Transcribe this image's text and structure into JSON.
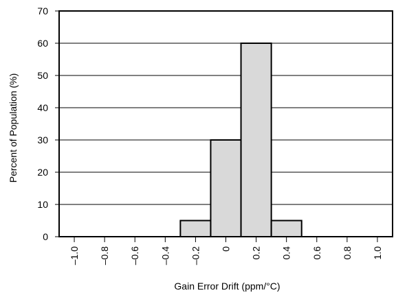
{
  "chart_data": {
    "type": "bar",
    "title": "",
    "xlabel": "Gain Error Drift (ppm/°C)",
    "ylabel": "Percent of Population (%)",
    "ylim": [
      0,
      70
    ],
    "xlim": [
      -1.1,
      1.1
    ],
    "grid": {
      "y": true,
      "x": false
    },
    "x_ticks": [
      -1.0,
      -0.8,
      -0.6,
      -0.4,
      -0.2,
      0,
      0.2,
      0.4,
      0.6,
      0.8,
      1.0
    ],
    "x_tick_labels": [
      "–1.0",
      "–0.8",
      "–0.6",
      "–0.4",
      "–0.2",
      "0",
      "0.2",
      "0.4",
      "0.6",
      "0.8",
      "1.0"
    ],
    "y_ticks": [
      0,
      10,
      20,
      30,
      40,
      50,
      60,
      70
    ],
    "y_tick_labels": [
      "0",
      "10",
      "20",
      "30",
      "40",
      "50",
      "60",
      "70"
    ],
    "bins": [
      {
        "x0": -0.3,
        "x1": -0.1,
        "value": 5
      },
      {
        "x0": -0.1,
        "x1": 0.1,
        "value": 30
      },
      {
        "x0": 0.1,
        "x1": 0.3,
        "value": 60
      },
      {
        "x0": 0.3,
        "x1": 0.5,
        "value": 5
      }
    ],
    "bar_color": "#d9d9d9",
    "edge_color": "#000000"
  }
}
